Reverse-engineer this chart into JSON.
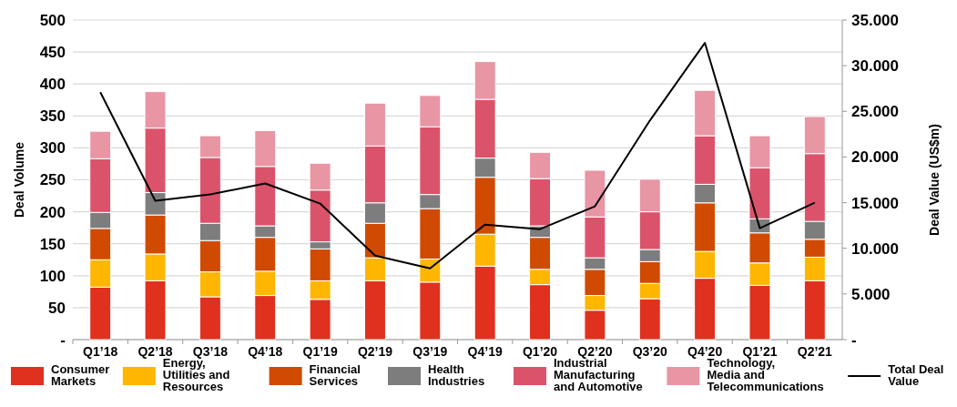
{
  "chart_data": {
    "type": "bar",
    "stacked": true,
    "ylabel": "Deal Volume",
    "y2label": "Deal Value (US$m)",
    "categories": [
      "Q1’18",
      "Q2’18",
      "Q3’18",
      "Q4’18",
      "Q1’19",
      "Q2’19",
      "Q3’19",
      "Q4’19",
      "Q1’20",
      "Q2’20",
      "Q3’20",
      "Q4’20",
      "Q1’21",
      "Q2’21"
    ],
    "series": [
      {
        "name": "Consumer Markets",
        "color": "#e0301e",
        "values": [
          82,
          92,
          67,
          69,
          63,
          92,
          90,
          115,
          86,
          46,
          64,
          96,
          85,
          92
        ]
      },
      {
        "name": "Energy, Utilities and Resources",
        "color": "#ffb600",
        "values": [
          43,
          42,
          39,
          38,
          29,
          36,
          36,
          50,
          24,
          23,
          24,
          42,
          35,
          37
        ]
      },
      {
        "name": "Financial Services",
        "color": "#d04a02",
        "values": [
          49,
          61,
          49,
          53,
          50,
          54,
          79,
          89,
          50,
          41,
          34,
          76,
          47,
          28
        ]
      },
      {
        "name": "Health Industries",
        "color": "#7d7d7d",
        "values": [
          25,
          35,
          27,
          18,
          11,
          32,
          22,
          30,
          18,
          18,
          19,
          29,
          22,
          28
        ]
      },
      {
        "name": "Industrial Manufacturing and Automotive",
        "color": "#db536a",
        "values": [
          84,
          101,
          103,
          93,
          81,
          89,
          106,
          92,
          74,
          64,
          59,
          76,
          80,
          106
        ]
      },
      {
        "name": "Technology, Media and Telecommunications",
        "color": "#e895a4",
        "values": [
          43,
          57,
          34,
          56,
          42,
          67,
          49,
          59,
          41,
          73,
          51,
          71,
          50,
          58
        ]
      },
      {
        "name": "Total Deal Value",
        "type": "line",
        "axis": "y2",
        "color": "#000000",
        "values": [
          27100,
          15200,
          15900,
          17100,
          14900,
          9200,
          7800,
          12600,
          12100,
          14600,
          24000,
          32500,
          12200,
          15000
        ]
      }
    ],
    "ylim": [
      0,
      500
    ],
    "yticks": [
      {
        "value": 0,
        "label": "-"
      },
      50,
      100,
      150,
      200,
      250,
      300,
      350,
      400,
      450,
      500
    ],
    "y2lim": [
      0,
      35000
    ],
    "y2ticks": [
      {
        "value": 0,
        "label": "-"
      },
      {
        "value": 5000,
        "label": "5.000"
      },
      {
        "value": 10000,
        "label": "10.000"
      },
      {
        "value": 15000,
        "label": "15.000"
      },
      {
        "value": 20000,
        "label": "20.000"
      },
      {
        "value": 25000,
        "label": "25.000"
      },
      {
        "value": 30000,
        "label": "30.000"
      },
      {
        "value": 35000,
        "label": "35.000"
      }
    ],
    "grid": "y",
    "legend": "bottom",
    "marker": "none",
    "line_style": "solid"
  }
}
